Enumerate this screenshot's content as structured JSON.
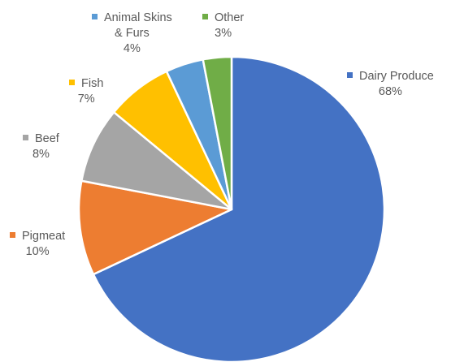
{
  "chart_data": {
    "type": "pie",
    "title": "",
    "slices": [
      {
        "label_lines": [
          "Dairy Produce"
        ],
        "value": 68,
        "value_label": "68%",
        "color": "#4472C4"
      },
      {
        "label_lines": [
          "Pigmeat"
        ],
        "value": 10,
        "value_label": "10%",
        "color": "#ED7D31"
      },
      {
        "label_lines": [
          "Beef"
        ],
        "value": 8,
        "value_label": "8%",
        "color": "#A5A5A5"
      },
      {
        "label_lines": [
          "Fish"
        ],
        "value": 7,
        "value_label": "7%",
        "color": "#FFC000"
      },
      {
        "label_lines": [
          "Animal Skins",
          "& Furs"
        ],
        "value": 4,
        "value_label": "4%",
        "color": "#5B9BD5"
      },
      {
        "label_lines": [
          "Other"
        ],
        "value": 3,
        "value_label": "3%",
        "color": "#70AD47"
      }
    ]
  }
}
